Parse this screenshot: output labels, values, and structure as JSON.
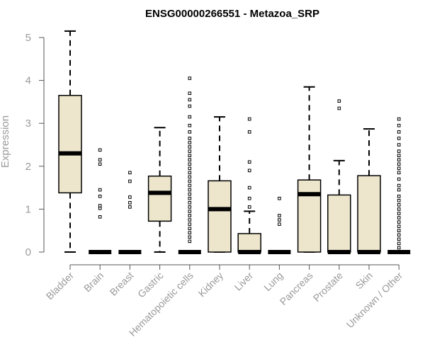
{
  "chart_data": {
    "type": "boxplot",
    "title": "ENSG00000266551 - Metazoa_SRP",
    "xlabel": "",
    "ylabel": "Expression",
    "ylim": [
      0,
      5.2
    ],
    "yticks": [
      0,
      1,
      2,
      3,
      4,
      5
    ],
    "colors": {
      "box_fill": "#ede6cc",
      "stroke": "#000000",
      "axis_text": "#9a9a9a"
    },
    "categories": [
      "Bladder",
      "Brain",
      "Breast",
      "Gastric",
      "Hematopoietic cells",
      "Kidney",
      "Liver",
      "Lung",
      "Pancreas",
      "Prostate",
      "Skin",
      "Unknown / Other"
    ],
    "boxes": [
      {
        "min": 0,
        "q1": 1.38,
        "median": 2.3,
        "q3": 3.65,
        "max": 5.15,
        "outliers": []
      },
      {
        "min": 0,
        "q1": 0,
        "median": 0,
        "q3": 0,
        "max": 0,
        "outliers": [
          0.82,
          1.02,
          1.08,
          1.3,
          1.45,
          2.05,
          2.15,
          2.38
        ]
      },
      {
        "min": 0,
        "q1": 0,
        "median": 0,
        "q3": 0,
        "max": 0,
        "outliers": [
          1.05,
          1.15,
          1.28,
          1.65,
          1.85
        ]
      },
      {
        "min": 0,
        "q1": 0.72,
        "median": 1.38,
        "q3": 1.77,
        "max": 2.9,
        "outliers": []
      },
      {
        "min": 0,
        "q1": 0,
        "median": 0,
        "q3": 0,
        "max": 0,
        "outliers": [
          0.25,
          0.35,
          0.45,
          0.55,
          0.65,
          0.75,
          0.85,
          0.95,
          1.05,
          1.15,
          1.25,
          1.35,
          1.45,
          1.55,
          1.65,
          1.75,
          1.85,
          1.95,
          2.05,
          2.15,
          2.25,
          2.35,
          2.45,
          2.55,
          2.65,
          2.8,
          2.95,
          3.15,
          3.4,
          3.55,
          3.7,
          4.05
        ]
      },
      {
        "min": 0,
        "q1": 0,
        "median": 1.0,
        "q3": 1.66,
        "max": 3.15,
        "outliers": []
      },
      {
        "min": 0,
        "q1": 0,
        "median": 0,
        "q3": 0.43,
        "max": 0.95,
        "outliers": [
          1.05,
          1.25,
          1.5,
          1.9,
          2.1,
          2.8,
          3.1
        ]
      },
      {
        "min": 0,
        "q1": 0,
        "median": 0,
        "q3": 0,
        "max": 0,
        "outliers": [
          0.65,
          0.75,
          0.85,
          1.25
        ]
      },
      {
        "min": 0,
        "q1": 0,
        "median": 1.35,
        "q3": 1.68,
        "max": 3.85,
        "outliers": []
      },
      {
        "min": 0,
        "q1": 0,
        "median": 0,
        "q3": 1.33,
        "max": 2.13,
        "outliers": [
          3.35,
          3.52
        ]
      },
      {
        "min": 0,
        "q1": 0,
        "median": 0,
        "q3": 1.78,
        "max": 2.87,
        "outliers": []
      },
      {
        "min": 0,
        "q1": 0,
        "median": 0,
        "q3": 0,
        "max": 0,
        "outliers": [
          0.1,
          0.2,
          0.3,
          0.4,
          0.5,
          0.6,
          0.7,
          0.8,
          0.9,
          1.0,
          1.1,
          1.2,
          1.3,
          1.45,
          1.55,
          1.7,
          1.85,
          1.95,
          2.05,
          2.15,
          2.25,
          2.35,
          2.5,
          2.65,
          2.8,
          2.95,
          3.1
        ]
      }
    ]
  }
}
